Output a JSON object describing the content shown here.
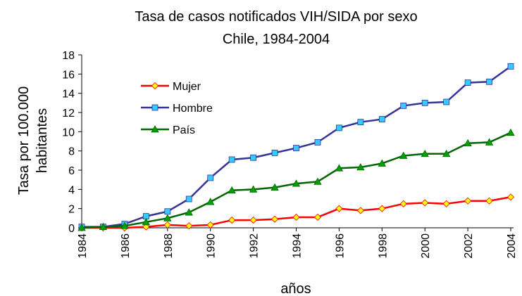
{
  "chart_data": {
    "type": "line",
    "title": "Tasa de casos notificados VIH/SIDA por sexo",
    "subtitle": "Chile, 1984-2004",
    "x_label": "años",
    "y_label": [
      "Tasa por 100.000",
      "habitantes"
    ],
    "x": [
      1984,
      1985,
      1986,
      1987,
      1988,
      1989,
      1990,
      1991,
      1992,
      1993,
      1994,
      1995,
      1996,
      1997,
      1998,
      1999,
      2000,
      2001,
      2002,
      2003,
      2004
    ],
    "series": [
      {
        "name": "Mujer",
        "color": "#ff0000",
        "marker": "diamond",
        "marker_color": "#ffff00",
        "values": [
          0,
          0,
          0,
          0.1,
          0.3,
          0.2,
          0.3,
          0.8,
          0.8,
          0.9,
          1.1,
          1.1,
          2.0,
          1.8,
          2.0,
          2.5,
          2.6,
          2.5,
          2.8,
          2.8,
          3.2
        ]
      },
      {
        "name": "Hombre",
        "color": "#333399",
        "marker": "square",
        "marker_color": "#33ccff",
        "values": [
          0.1,
          0.1,
          0.4,
          1.2,
          1.7,
          3.0,
          5.2,
          7.1,
          7.3,
          7.8,
          8.3,
          8.9,
          10.4,
          11.0,
          11.3,
          12.7,
          13.0,
          13.1,
          15.1,
          15.2,
          16.8
        ]
      },
      {
        "name": "País",
        "color": "#006600",
        "marker": "triangle",
        "marker_color": "#00a000",
        "values": [
          0,
          0.1,
          0.2,
          0.6,
          1.0,
          1.6,
          2.7,
          3.9,
          4.0,
          4.2,
          4.6,
          4.8,
          6.2,
          6.3,
          6.7,
          7.5,
          7.7,
          7.7,
          8.8,
          8.9,
          9.9
        ]
      }
    ],
    "xlim": [
      1984,
      2004
    ],
    "xticks": [
      1984,
      1986,
      1988,
      1990,
      1992,
      1994,
      1996,
      1998,
      2000,
      2002,
      2004
    ],
    "ylim": [
      0,
      18
    ],
    "yticks": [
      0,
      2,
      4,
      6,
      8,
      10,
      12,
      14,
      16,
      18
    ],
    "grid": false,
    "legend": "upper left"
  }
}
